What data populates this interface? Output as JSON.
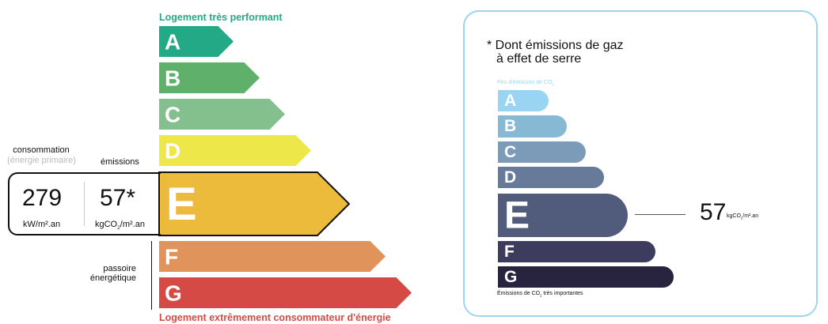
{
  "energy_label": {
    "top_caption": "Logement très performant",
    "bottom_caption": "Logement extrêmement consommateur d'énergie",
    "classes": [
      {
        "letter": "A",
        "color": "#23a985"
      },
      {
        "letter": "B",
        "color": "#5fb06a"
      },
      {
        "letter": "C",
        "color": "#83c08d"
      },
      {
        "letter": "D",
        "color": "#ede74a"
      },
      {
        "letter": "E",
        "color": "#ecbb3b"
      },
      {
        "letter": "F",
        "color": "#e0935b"
      },
      {
        "letter": "G",
        "color": "#d64a45"
      }
    ],
    "current_class": "E",
    "consumption_label": "consommation",
    "consumption_sublabel": "(énergie primaire)",
    "emissions_label": "émissions",
    "consumption_value": "279",
    "consumption_unit": "kW/m².an",
    "emissions_value": "57*",
    "emissions_unit_pre": "kgCO",
    "emissions_unit_sub": "2",
    "emissions_unit_post": "/m².an",
    "passoire_line1": "passoire",
    "passoire_line2": "énergétique"
  },
  "ges_panel": {
    "title_line1": "* Dont émissions de gaz",
    "title_line2": "à effet de serre",
    "top_caption_pre": "Peu d'émission de CO",
    "top_caption_sub": "2",
    "bottom_caption_pre": "Émissions de CO",
    "bottom_caption_sub": "2",
    "bottom_caption_post": " très importantes",
    "classes": [
      {
        "letter": "A",
        "color": "#99d5f2"
      },
      {
        "letter": "B",
        "color": "#87b8d4"
      },
      {
        "letter": "C",
        "color": "#7b9bb9"
      },
      {
        "letter": "D",
        "color": "#677a99"
      },
      {
        "letter": "E",
        "color": "#515c7d"
      },
      {
        "letter": "F",
        "color": "#3d3c5e"
      },
      {
        "letter": "G",
        "color": "#282440"
      }
    ],
    "current_class": "E",
    "value": "57",
    "unit_pre": "kgCO",
    "unit_sub": "2",
    "unit_post": "/m².an",
    "border_color": "#9ed4ee"
  }
}
